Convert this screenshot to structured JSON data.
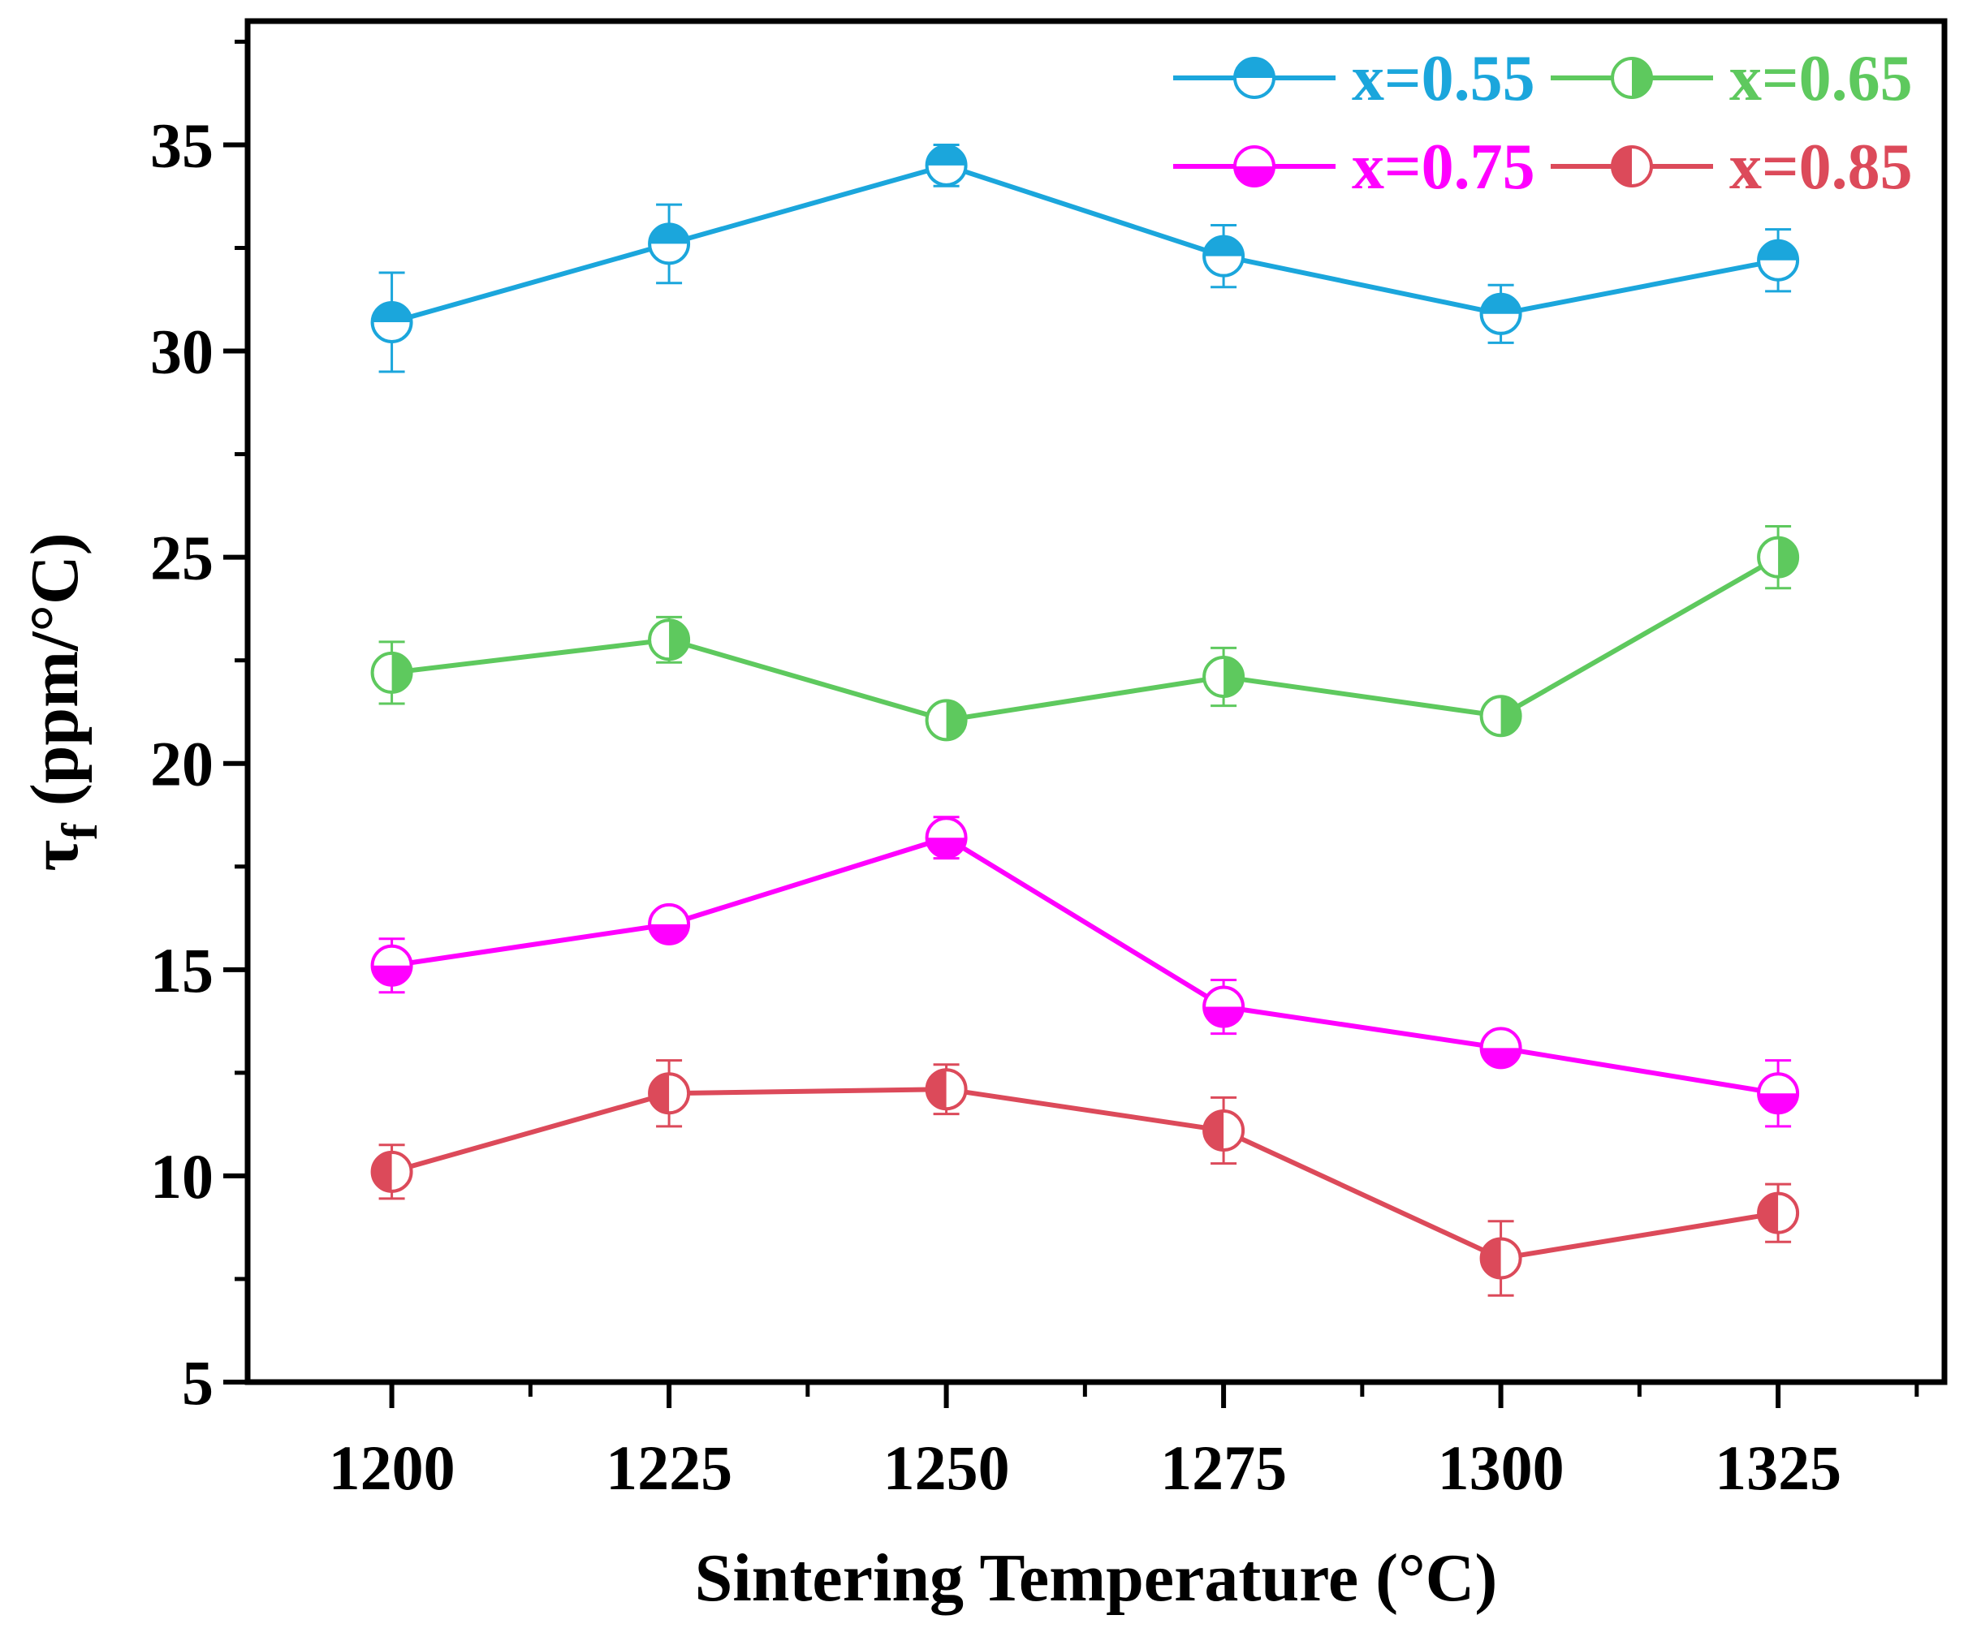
{
  "chart_data": {
    "type": "line",
    "title": "",
    "xlabel": "Sintering Temperature (°C)",
    "ylabel_main": "τ",
    "ylabel_sub": "f",
    "ylabel_unit": " (ppm/°C)",
    "x": [
      1200,
      1225,
      1250,
      1275,
      1300,
      1325
    ],
    "x_ticks": [
      "1200",
      "1225",
      "1250",
      "1275",
      "1300",
      "1325"
    ],
    "xlim": [
      1187,
      1340
    ],
    "ylim": [
      5,
      38
    ],
    "y_ticks": [
      "5",
      "10",
      "15",
      "20",
      "25",
      "30",
      "35"
    ],
    "y_tick_values": [
      5,
      10,
      15,
      20,
      25,
      30,
      35
    ],
    "grid": false,
    "legend_position": "top-right",
    "series": [
      {
        "name": "x=0.55",
        "color": "#1ba6dc",
        "marker": "half-top",
        "values": [
          30.7,
          32.6,
          34.5,
          32.3,
          30.9,
          32.2
        ],
        "errors": [
          1.2,
          0.95,
          0.5,
          0.75,
          0.7,
          0.75
        ]
      },
      {
        "name": "x=0.65",
        "color": "#5ec95e",
        "marker": "half-right",
        "values": [
          22.2,
          23.0,
          21.05,
          22.1,
          21.15,
          25.0
        ],
        "errors": [
          0.75,
          0.55,
          0.2,
          0.7,
          0.2,
          0.75
        ]
      },
      {
        "name": "x=0.75",
        "color": "#ff00ff",
        "marker": "half-bottom",
        "values": [
          15.1,
          16.1,
          18.2,
          14.1,
          13.1,
          12.0
        ],
        "errors": [
          0.65,
          0.3,
          0.5,
          0.65,
          0.3,
          0.8
        ]
      },
      {
        "name": "x=0.85",
        "color": "#dc4a5a",
        "marker": "half-left",
        "values": [
          10.1,
          12.0,
          12.1,
          11.1,
          8.0,
          9.1
        ],
        "errors": [
          0.65,
          0.8,
          0.6,
          0.8,
          0.9,
          0.7
        ]
      }
    ]
  }
}
